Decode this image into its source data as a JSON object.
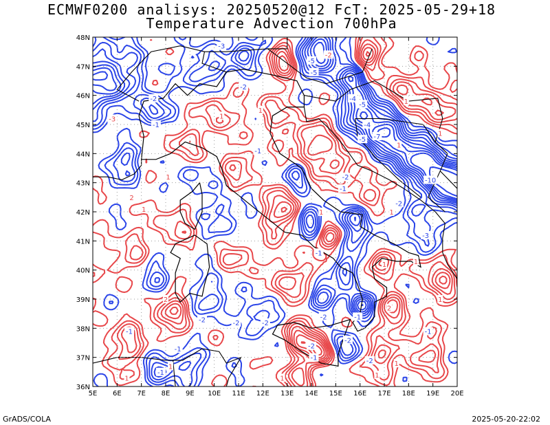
{
  "title": {
    "line1": "ECMWF0200 analisys: 20250520@12 FcT: 2025-05-29+18",
    "line2": "Temperature Advection 700hPa"
  },
  "map": {
    "lon_range": [
      5,
      20
    ],
    "lat_range": [
      36,
      48
    ],
    "lon_ticks": [
      "5E",
      "6E",
      "7E",
      "8E",
      "9E",
      "10E",
      "11E",
      "12E",
      "13E",
      "14E",
      "15E",
      "16E",
      "17E",
      "18E",
      "19E",
      "20E"
    ],
    "lat_ticks": [
      "36N",
      "37N",
      "38N",
      "39N",
      "40N",
      "41N",
      "42N",
      "43N",
      "44N",
      "45N",
      "46N",
      "47N",
      "48N"
    ],
    "grid": true,
    "colors": {
      "warm_advection": "#e8474a",
      "cold_advection": "#2b45e8",
      "coastline": "#000000",
      "grid": "#999999"
    },
    "contour_labels": [
      {
        "text": "-3",
        "lon": 10.3,
        "lat": 47.7,
        "kind": "cold"
      },
      {
        "text": "-5",
        "lon": 14.0,
        "lat": 47.2,
        "kind": "cold"
      },
      {
        "text": "-2",
        "lon": 14.7,
        "lat": 47.4,
        "kind": "red"
      },
      {
        "text": "-5",
        "lon": 14.1,
        "lat": 46.8,
        "kind": "cold"
      },
      {
        "text": "-2",
        "lon": 11.2,
        "lat": 46.3,
        "kind": "cold"
      },
      {
        "text": "-2",
        "lon": 7.5,
        "lat": 45.9,
        "kind": "cold"
      },
      {
        "text": "-4",
        "lon": 15.7,
        "lat": 45.9,
        "kind": "cold"
      },
      {
        "text": "-5",
        "lon": 16.1,
        "lat": 45.7,
        "kind": "cold"
      },
      {
        "text": "-3",
        "lon": 5.8,
        "lat": 45.2,
        "kind": "red"
      },
      {
        "text": "-1",
        "lon": 7.6,
        "lat": 45.0,
        "kind": "cold"
      },
      {
        "text": "-4",
        "lon": 16.3,
        "lat": 45.0,
        "kind": "cold"
      },
      {
        "text": "-5",
        "lon": 16.1,
        "lat": 44.5,
        "kind": "cold"
      },
      {
        "text": "-7",
        "lon": 16.7,
        "lat": 44.6,
        "kind": "cold"
      },
      {
        "text": "-10",
        "lon": 18.9,
        "lat": 43.1,
        "kind": "cold"
      },
      {
        "text": "-2",
        "lon": 15.4,
        "lat": 43.2,
        "kind": "cold"
      },
      {
        "text": "-2",
        "lon": 17.6,
        "lat": 42.3,
        "kind": "cold"
      },
      {
        "text": "-3",
        "lon": 18.7,
        "lat": 41.2,
        "kind": "cold"
      },
      {
        "text": "-1",
        "lon": 15.3,
        "lat": 42.8,
        "kind": "cold"
      },
      {
        "text": "-1",
        "lon": 14.3,
        "lat": 40.6,
        "kind": "cold"
      },
      {
        "text": "-2",
        "lon": 9.5,
        "lat": 38.3,
        "kind": "cold"
      },
      {
        "text": "-2",
        "lon": 10.9,
        "lat": 38.2,
        "kind": "cold"
      },
      {
        "text": "-2",
        "lon": 12.1,
        "lat": 38.2,
        "kind": "cold"
      },
      {
        "text": "-2",
        "lon": 14.5,
        "lat": 38.4,
        "kind": "cold"
      },
      {
        "text": "-1",
        "lon": 6.5,
        "lat": 37.9,
        "kind": "cold"
      },
      {
        "text": "-1",
        "lon": 8.5,
        "lat": 37.3,
        "kind": "cold"
      },
      {
        "text": "-1",
        "lon": 7.8,
        "lat": 36.5,
        "kind": "cold"
      },
      {
        "text": "-2",
        "lon": 14.0,
        "lat": 37.4,
        "kind": "cold"
      },
      {
        "text": "-1",
        "lon": 14.1,
        "lat": 37.0,
        "kind": "cold"
      },
      {
        "text": "-2",
        "lon": 15.5,
        "lat": 37.6,
        "kind": "cold"
      },
      {
        "text": "-2",
        "lon": 16.4,
        "lat": 36.9,
        "kind": "cold"
      },
      {
        "text": "-1",
        "lon": 15.9,
        "lat": 38.4,
        "kind": "cold"
      },
      {
        "text": "-1",
        "lon": 18.8,
        "lat": 37.9,
        "kind": "cold"
      },
      {
        "text": "-1",
        "lon": 11.8,
        "lat": 44.1,
        "kind": "cold"
      },
      {
        "text": "1",
        "lon": 8.2,
        "lat": 36.7,
        "kind": "red"
      },
      {
        "text": "1",
        "lon": 12.8,
        "lat": 36.3,
        "kind": "red"
      },
      {
        "text": "2",
        "lon": 8.0,
        "lat": 39.0,
        "kind": "red"
      },
      {
        "text": "1",
        "lon": 17.0,
        "lat": 40.2,
        "kind": "red"
      },
      {
        "text": "1",
        "lon": 14.4,
        "lat": 42.0,
        "kind": "red"
      },
      {
        "text": "1",
        "lon": 17.3,
        "lat": 42.0,
        "kind": "red"
      },
      {
        "text": "1",
        "lon": 18.3,
        "lat": 40.3,
        "kind": "red"
      },
      {
        "text": "2",
        "lon": 17.2,
        "lat": 38.7,
        "kind": "red"
      },
      {
        "text": "1",
        "lon": 19.3,
        "lat": 44.7,
        "kind": "red"
      },
      {
        "text": "1",
        "lon": 17.6,
        "lat": 44.3,
        "kind": "red"
      },
      {
        "text": "1",
        "lon": 17.9,
        "lat": 45.8,
        "kind": "red"
      },
      {
        "text": "1",
        "lon": 11.9,
        "lat": 45.5,
        "kind": "red"
      },
      {
        "text": "1",
        "lon": 10.3,
        "lat": 45.3,
        "kind": "red"
      },
      {
        "text": "1",
        "lon": 8.1,
        "lat": 43.2,
        "kind": "red"
      },
      {
        "text": "1",
        "lon": 7.1,
        "lat": 42.1,
        "kind": "red"
      },
      {
        "text": "2",
        "lon": 6.6,
        "lat": 42.5,
        "kind": "red"
      },
      {
        "text": "1",
        "lon": 19.3,
        "lat": 39.0,
        "kind": "red"
      },
      {
        "text": "1",
        "lon": 6.4,
        "lat": 36.3,
        "kind": "red"
      },
      {
        "text": "1",
        "lon": 17.5,
        "lat": 36.8,
        "kind": "red"
      },
      {
        "text": "1",
        "lon": 16.7,
        "lat": 36.4,
        "kind": "red"
      }
    ]
  },
  "footer": {
    "left": "GrADS/COLA",
    "right": "2025-05-20-22:02"
  }
}
